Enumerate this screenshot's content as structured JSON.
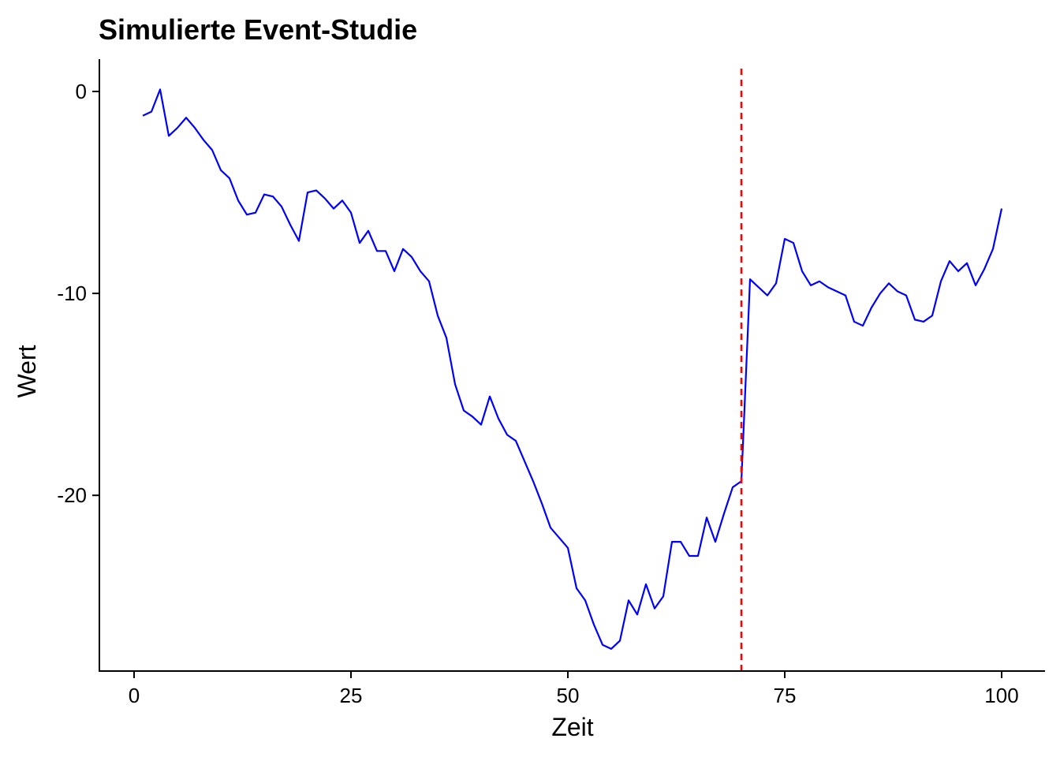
{
  "chart_data": {
    "type": "line",
    "title": "Simulierte Event-Studie",
    "xlabel": "Zeit",
    "ylabel": "Wert",
    "xlim": [
      -4,
      105
    ],
    "ylim": [
      -28.7,
      1.6
    ],
    "x_ticks": [
      0,
      25,
      50,
      75,
      100
    ],
    "x_tick_labels": [
      "0",
      "25",
      "50",
      "75",
      "100"
    ],
    "y_ticks": [
      0,
      -10,
      -20
    ],
    "y_tick_labels": [
      "0",
      "-10",
      "-20"
    ],
    "grid": false,
    "legend": "none",
    "series": [
      {
        "color": "#0000ff",
        "x": [
          1,
          2,
          3,
          4,
          5,
          6,
          7,
          8,
          9,
          10,
          11,
          12,
          13,
          14,
          15,
          16,
          17,
          18,
          19,
          20,
          21,
          22,
          23,
          24,
          25,
          26,
          27,
          28,
          29,
          30,
          31,
          32,
          33,
          34,
          35,
          36,
          37,
          38,
          39,
          40,
          41,
          42,
          43,
          44,
          45,
          46,
          47,
          48,
          49,
          50,
          51,
          52,
          53,
          54,
          55,
          56,
          57,
          58,
          59,
          60,
          61,
          62,
          63,
          64,
          65,
          66,
          67,
          68,
          69,
          70,
          71,
          72,
          73,
          74,
          75,
          76,
          77,
          78,
          79,
          80,
          81,
          82,
          83,
          84,
          85,
          86,
          87,
          88,
          89,
          90,
          91,
          92,
          93,
          94,
          95,
          96,
          97,
          98,
          99,
          100
        ],
        "y": [
          -1.2,
          -1.0,
          0.1,
          -2.2,
          -1.8,
          -1.3,
          -1.8,
          -2.4,
          -2.9,
          -3.9,
          -4.3,
          -5.4,
          -6.1,
          -6.0,
          -5.1,
          -5.2,
          -5.7,
          -6.6,
          -7.4,
          -5.0,
          -4.9,
          -5.3,
          -5.8,
          -5.4,
          -6.0,
          -7.5,
          -6.9,
          -7.9,
          -7.9,
          -8.9,
          -7.8,
          -8.2,
          -8.9,
          -9.4,
          -11.1,
          -12.2,
          -14.5,
          -15.8,
          -16.1,
          -16.5,
          -15.1,
          -16.2,
          -17.0,
          -17.3,
          -18.3,
          -19.3,
          -20.4,
          -21.6,
          -22.1,
          -22.6,
          -24.6,
          -25.2,
          -26.4,
          -27.4,
          -27.6,
          -27.2,
          -25.2,
          -25.9,
          -24.4,
          -25.6,
          -25.0,
          -22.3,
          -22.3,
          -23.0,
          -23.0,
          -21.1,
          -22.3,
          -20.9,
          -19.6,
          -19.3,
          -9.3,
          -9.7,
          -10.1,
          -9.5,
          -7.3,
          -7.5,
          -8.9,
          -9.6,
          -9.4,
          -9.7,
          -9.9,
          -10.1,
          -11.4,
          -11.6,
          -10.7,
          -10.0,
          -9.5,
          -9.9,
          -10.1,
          -11.3,
          -11.4,
          -11.1,
          -9.4,
          -8.4,
          -8.9,
          -8.5,
          -9.6,
          -8.8,
          -7.8,
          -5.8
        ]
      }
    ],
    "annotations": [
      {
        "type": "vline",
        "x": 70,
        "color": "#ff0000",
        "style": "dashed"
      }
    ]
  }
}
